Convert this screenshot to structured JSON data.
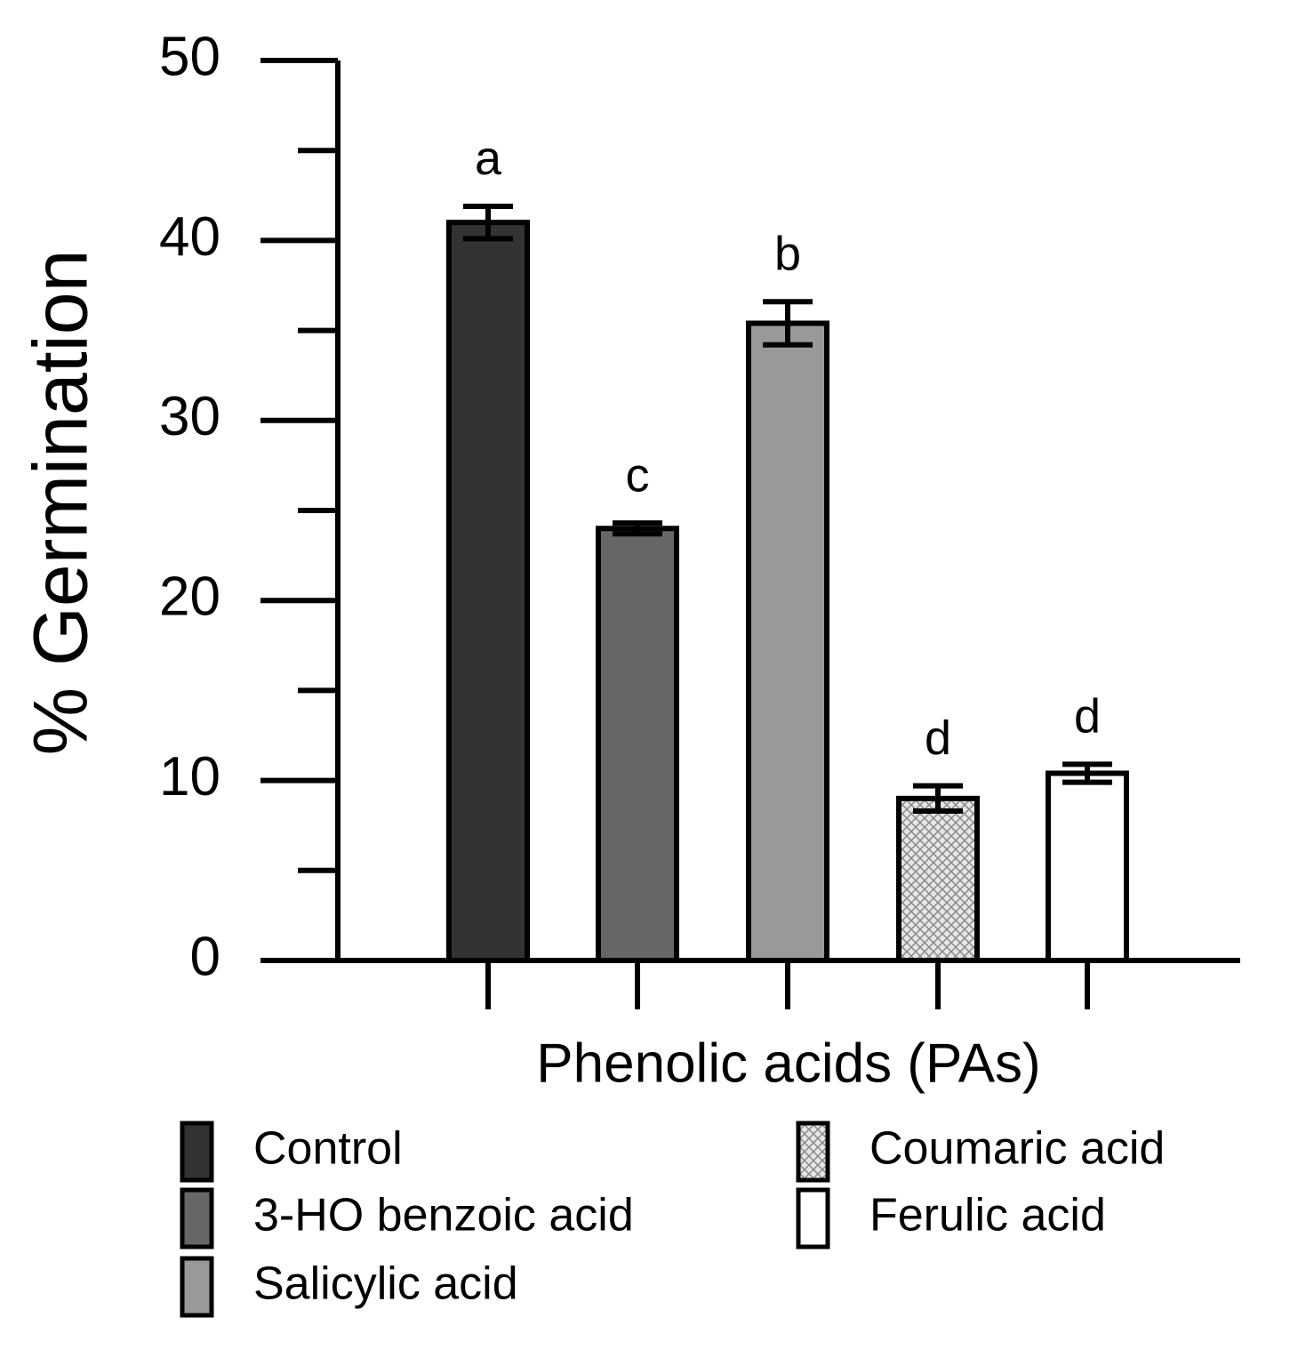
{
  "chart_data": {
    "type": "bar",
    "y_label": "% Germination",
    "x_label": "Phenolic acids (PAs)",
    "categories": [
      null,
      null,
      null,
      null,
      null
    ],
    "values": [
      41,
      24,
      35.4,
      9,
      10.4
    ],
    "errors": [
      0.9,
      0.3,
      1.2,
      0.7,
      0.5
    ],
    "letters": [
      "a",
      "c",
      "b",
      "d",
      "d"
    ],
    "legend_labels": [
      "Control",
      "3-HO benzoic acid",
      "Salicylic acid",
      "Coumaric acid",
      "Ferulic acid"
    ],
    "colors": [
      "#333333",
      "#666666",
      "#999999",
      "#e6e6e6",
      "#ffffff"
    ],
    "hatch": [
      false,
      false,
      false,
      true,
      false
    ],
    "ylim": [
      0,
      50
    ],
    "yticks": [
      0,
      10,
      20,
      30,
      40,
      50
    ],
    "yminorticks": [
      5,
      15,
      25,
      35,
      45
    ]
  }
}
